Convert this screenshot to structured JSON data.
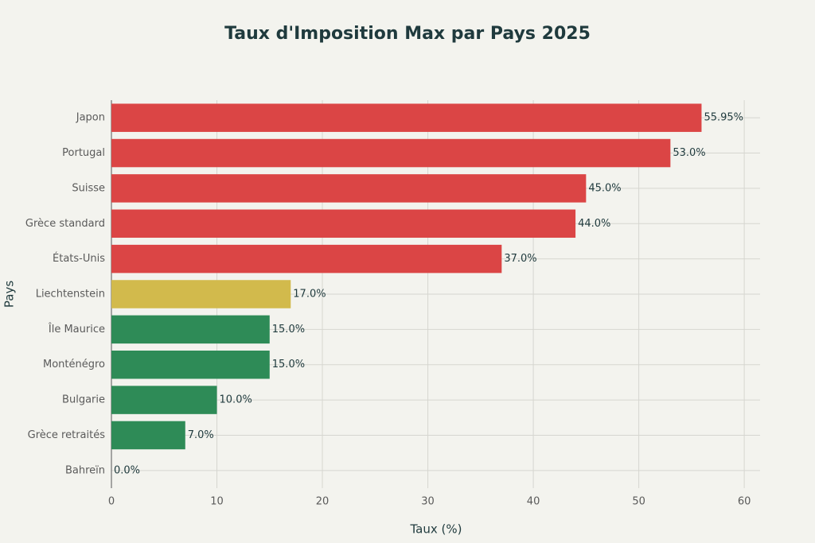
{
  "chart_data": {
    "type": "bar",
    "orientation": "horizontal",
    "title": "Taux d'Imposition Max par Pays 2025",
    "x_label": "Taux (%)",
    "y_label": "Pays",
    "categories": [
      "Japon",
      "Portugal",
      "Suisse",
      "Grèce standard",
      "États-Unis",
      "Liechtenstein",
      "Île Maurice",
      "Monténégro",
      "Bulgarie",
      "Grèce retraités",
      "Bahreïn"
    ],
    "values": [
      55.95,
      53.0,
      45.0,
      44.0,
      37.0,
      17.0,
      15.0,
      15.0,
      10.0,
      7.0,
      0.0
    ],
    "value_labels": [
      "55.95%",
      "53.0%",
      "45.0%",
      "44.0%",
      "37.0%",
      "17.0%",
      "15.0%",
      "15.0%",
      "10.0%",
      "7.0%",
      "0.0%"
    ],
    "colors": [
      "#db4545",
      "#db4545",
      "#db4545",
      "#db4545",
      "#db4545",
      "#d2ba4c",
      "#2e8b57",
      "#2e8b57",
      "#2e8b57",
      "#2e8b57",
      "#2e8b57"
    ],
    "xlim": [
      0,
      61.5
    ],
    "xticks": [
      0,
      10,
      20,
      30,
      40,
      50,
      60
    ],
    "grid": true
  }
}
